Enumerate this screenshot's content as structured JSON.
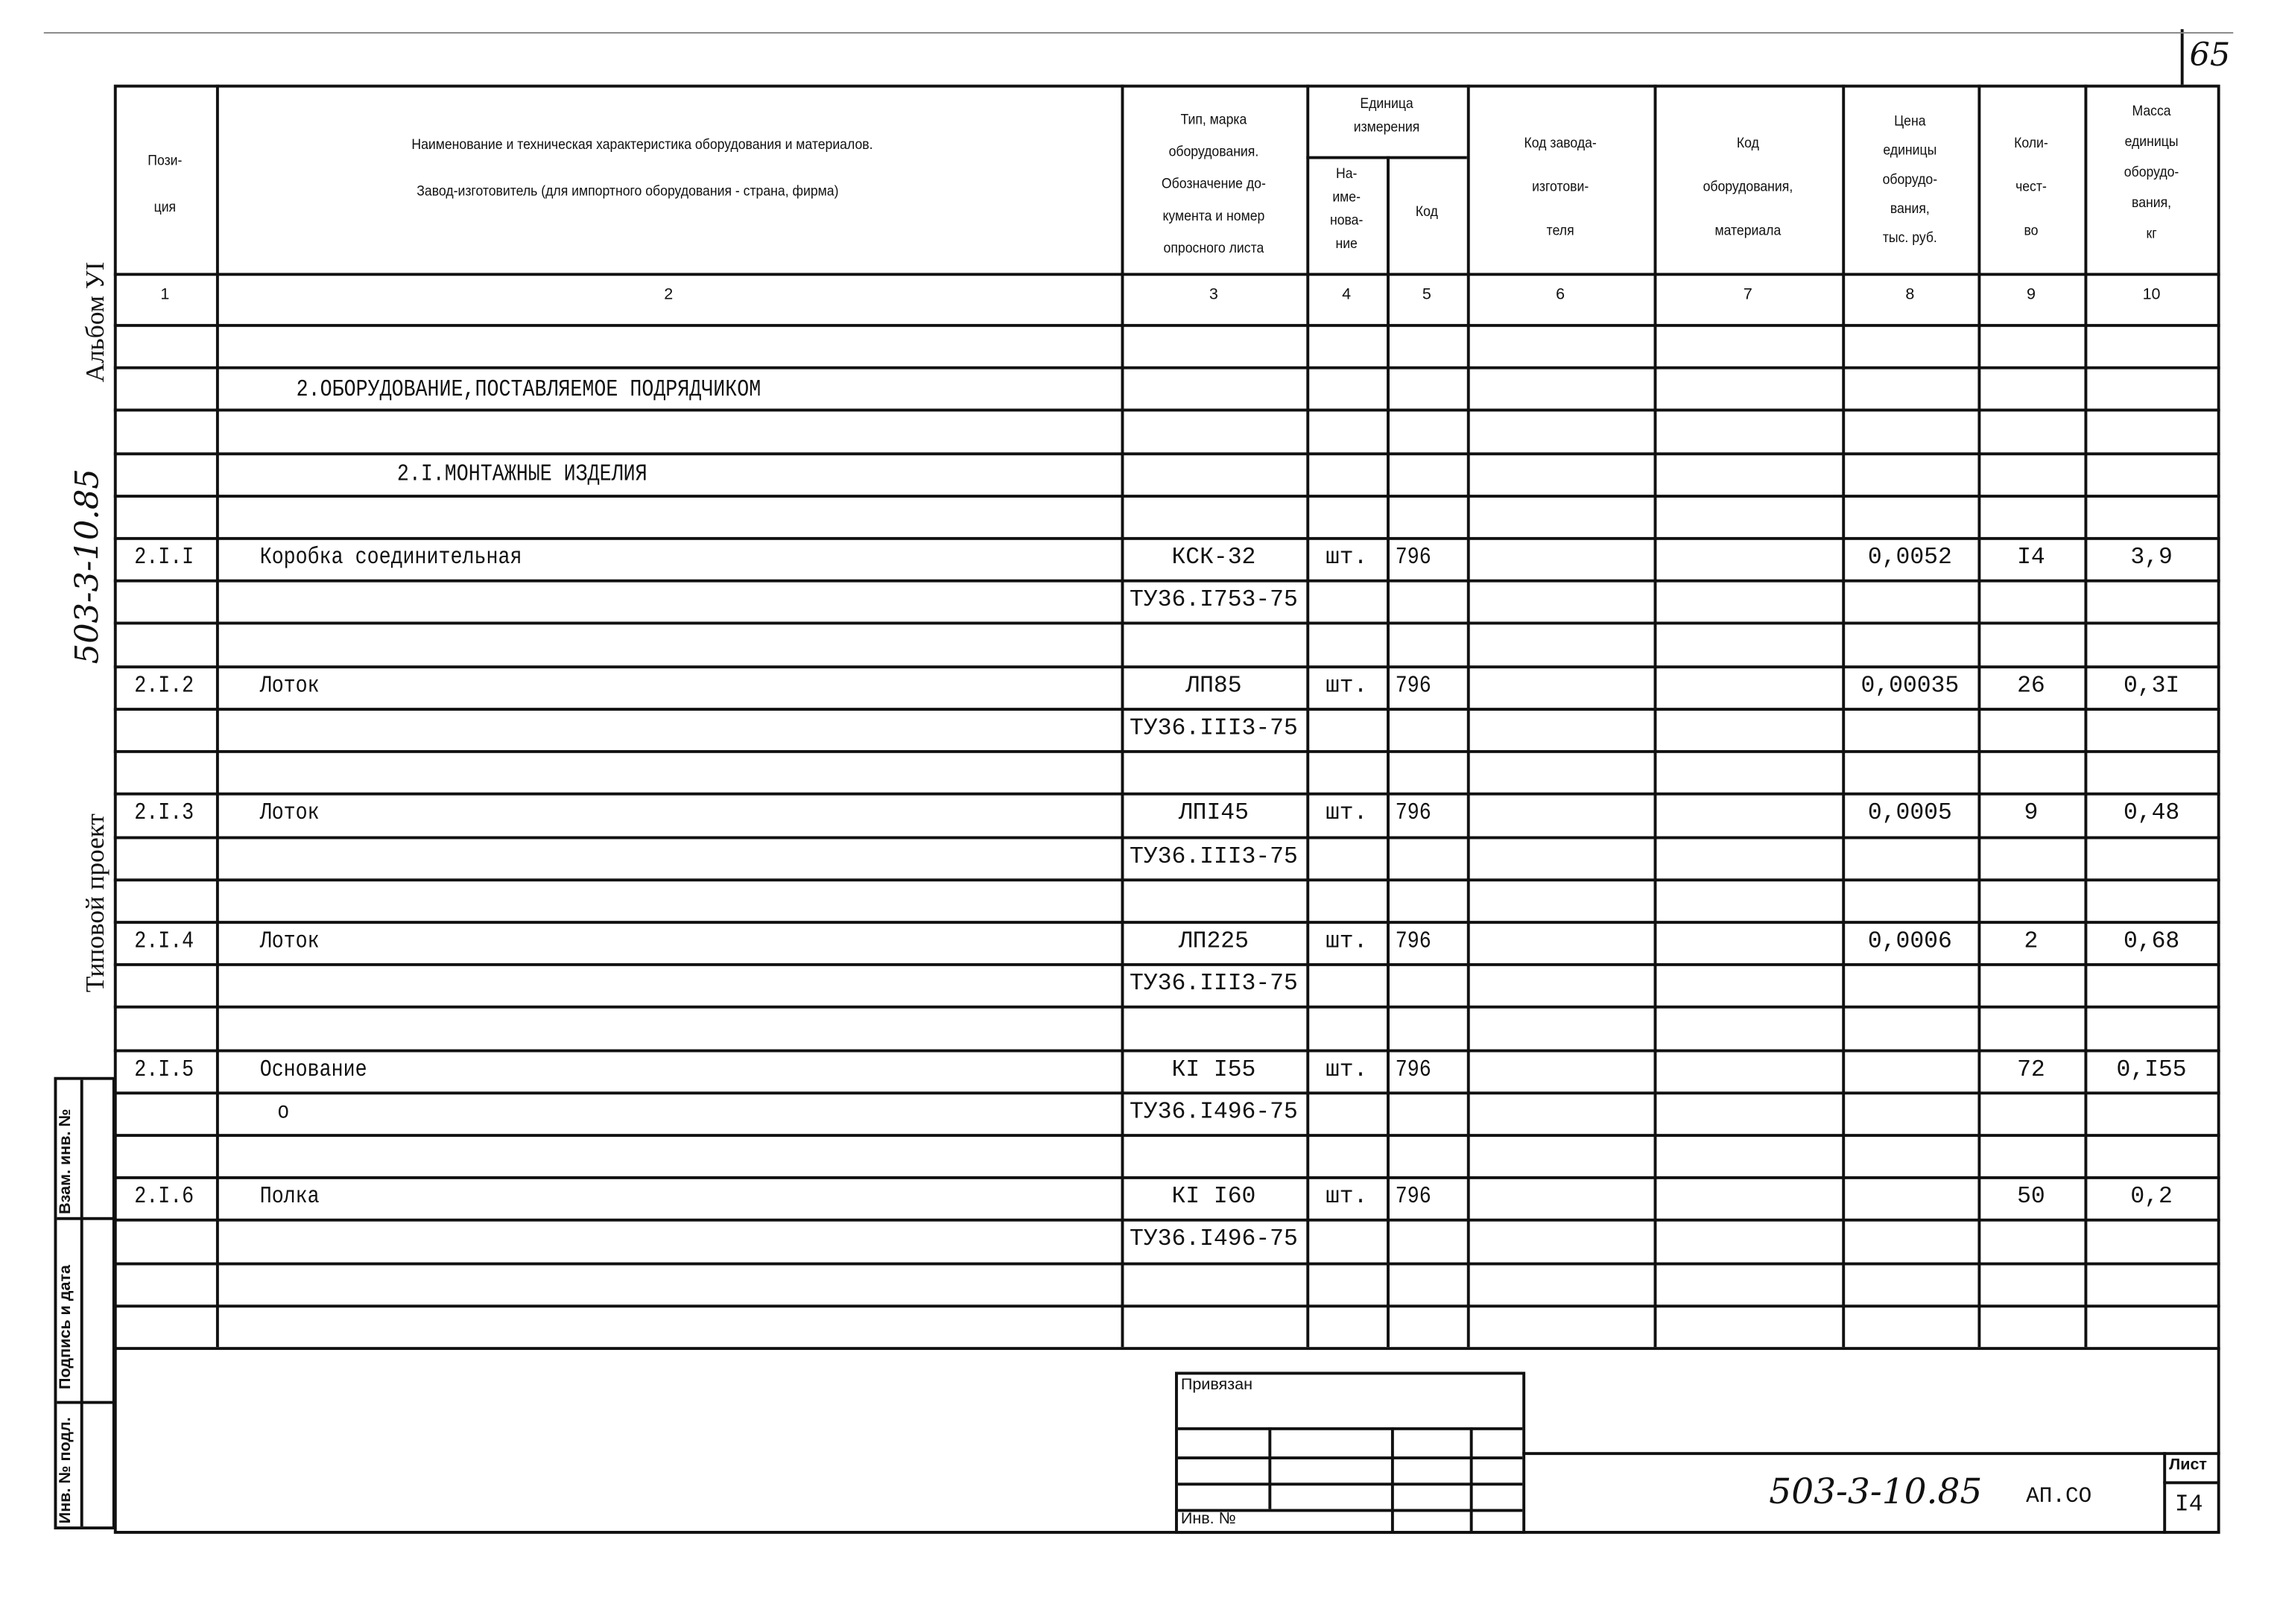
{
  "page_number": "65",
  "header": {
    "col1": "Пози-\nция",
    "col2_line1": "Наименование и техническая характеристика оборудования и материалов.",
    "col2_line2": "Завод-изготовитель (для импортного оборудования - страна, фирма)",
    "col3": "Тип, марка\nоборудования.\nОбозначение до-\nкумента и номер\nопросного листа",
    "unit_group": "Единица\nизмерения",
    "col4": "На-\nиме-\nнова-\nние",
    "col5": "Код",
    "col6": "Код завода-\nизготови-\nтеля",
    "col7": "Код\nоборудования,\nматериала",
    "col8": "Цена\nединицы\nоборудо-\nвания,\nтыс. руб.",
    "col9": "Коли-\nчест-\nво",
    "col10": "Масса\nединицы\nоборудо-\nвания,\nкг"
  },
  "column_numbers": [
    "1",
    "2",
    "3",
    "4",
    "5",
    "6",
    "7",
    "8",
    "9",
    "10"
  ],
  "section_title": "2.ОБОРУДОВАНИЕ,ПОСТАВЛЯЕМОЕ ПОДРЯДЧИКОМ",
  "subsection_title": "2.I.МОНТАЖНЫЕ ИЗДЕЛИЯ",
  "items": [
    {
      "pos": "2.I.I",
      "name": "Коробка соединительная",
      "type": "КСК-32",
      "doc": "ТУ36.I753-75",
      "unit": "шт.",
      "code": "796",
      "price": "0,0052",
      "qty": "I4",
      "mass": "3,9",
      "note": ""
    },
    {
      "pos": "2.I.2",
      "name": "Лоток",
      "type": "ЛП85",
      "doc": "ТУ36.III3-75",
      "unit": "шт.",
      "code": "796",
      "price": "0,00035",
      "qty": "26",
      "mass": "0,3I",
      "note": ""
    },
    {
      "pos": "2.I.3",
      "name": "Лоток",
      "type": "ЛПI45",
      "doc": "ТУ36.III3-75",
      "unit": "шт.",
      "code": "796",
      "price": "0,0005",
      "qty": "9",
      "mass": "0,48",
      "note": ""
    },
    {
      "pos": "2.I.4",
      "name": "Лоток",
      "type": "ЛП225",
      "doc": "ТУ36.III3-75",
      "unit": "шт.",
      "code": "796",
      "price": "0,0006",
      "qty": "2",
      "mass": "0,68",
      "note": ""
    },
    {
      "pos": "2.I.5",
      "name": "Основание",
      "type": "КI I55",
      "doc": "ТУ36.I496-75",
      "unit": "шт.",
      "code": "796",
      "price": "",
      "qty": "72",
      "mass": "0,I55",
      "note": "о"
    },
    {
      "pos": "2.I.6",
      "name": "Полка",
      "type": "КI I60",
      "doc": "ТУ36.I496-75",
      "unit": "шт.",
      "code": "796",
      "price": "",
      "qty": "50",
      "mass": "0,2",
      "note": ""
    }
  ],
  "margin": {
    "album": "Альбом УI",
    "project_handwritten": "503-3-10.85",
    "typical_project": "Типовой проект",
    "stamp_replace": "Взам. инв. №",
    "stamp_sign": "Подпись и дата",
    "stamp_inv": "Инв. № подл."
  },
  "title_block": {
    "attached": "Привязан",
    "inv_no": "Инв. №",
    "doc_code": "503-3-10.85",
    "doc_suffix": "АП.СО",
    "sheet_label": "Лист",
    "sheet_number": "I4"
  }
}
